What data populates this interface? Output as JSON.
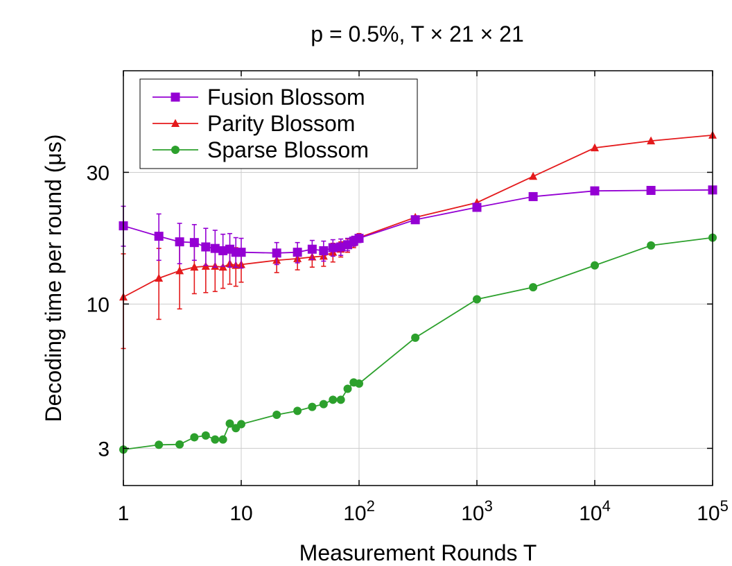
{
  "chart_data": {
    "type": "line",
    "title": "p = 0.5%, T × 21 × 21",
    "xlabel": "Measurement Rounds T",
    "ylabel": "Decoding time per round (μs)",
    "x_scale": "log",
    "y_scale": "log",
    "xlim": [
      1,
      100000
    ],
    "ylim": [
      2.2,
      70
    ],
    "grid": true,
    "legend_position": "top-left",
    "x_ticks": [
      {
        "value": 1,
        "label": "1",
        "sup": ""
      },
      {
        "value": 10,
        "label": "10",
        "sup": ""
      },
      {
        "value": 100,
        "label": "10",
        "sup": "2"
      },
      {
        "value": 1000,
        "label": "10",
        "sup": "3"
      },
      {
        "value": 10000,
        "label": "10",
        "sup": "4"
      },
      {
        "value": 100000,
        "label": "10",
        "sup": "5"
      }
    ],
    "y_ticks": [
      {
        "value": 3,
        "label": "3"
      },
      {
        "value": 10,
        "label": "10"
      },
      {
        "value": 30,
        "label": "30"
      }
    ],
    "series": [
      {
        "name": "Fusion Blossom",
        "color": "#9400d3",
        "marker": "square",
        "points": [
          {
            "x": 1,
            "y": 19.2,
            "lo": 16.2,
            "hi": 22.6
          },
          {
            "x": 2,
            "y": 17.6,
            "lo": 14.4,
            "hi": 21.2
          },
          {
            "x": 3,
            "y": 16.8,
            "lo": 14.0,
            "hi": 19.6
          },
          {
            "x": 4,
            "y": 16.7,
            "lo": 14.4,
            "hi": 19.4
          },
          {
            "x": 5,
            "y": 16.1,
            "lo": 13.8,
            "hi": 18.8
          },
          {
            "x": 6,
            "y": 15.9,
            "lo": 13.6,
            "hi": 18.5
          },
          {
            "x": 7,
            "y": 15.6,
            "lo": 13.7,
            "hi": 17.9
          },
          {
            "x": 8,
            "y": 15.8,
            "lo": 13.6,
            "hi": 18.0
          },
          {
            "x": 9,
            "y": 15.4,
            "lo": 13.6,
            "hi": 17.4
          },
          {
            "x": 10,
            "y": 15.4,
            "lo": 13.5,
            "hi": 17.3
          },
          {
            "x": 20,
            "y": 15.3,
            "lo": 13.9,
            "hi": 16.7
          },
          {
            "x": 30,
            "y": 15.4,
            "lo": 14.1,
            "hi": 16.7
          },
          {
            "x": 40,
            "y": 15.8,
            "lo": 14.5,
            "hi": 17.0
          },
          {
            "x": 50,
            "y": 15.6,
            "lo": 14.3,
            "hi": 16.9
          },
          {
            "x": 60,
            "y": 16.0,
            "lo": 14.9,
            "hi": 17.1
          },
          {
            "x": 70,
            "y": 16.1,
            "lo": 15.0,
            "hi": 17.2
          },
          {
            "x": 80,
            "y": 16.4,
            "lo": 15.6,
            "hi": 17.3
          },
          {
            "x": 90,
            "y": 16.9,
            "lo": 16.2,
            "hi": 17.6
          },
          {
            "x": 100,
            "y": 17.3,
            "lo": 16.7,
            "hi": 17.9
          },
          {
            "x": 300,
            "y": 20.2
          },
          {
            "x": 1000,
            "y": 22.4
          },
          {
            "x": 3000,
            "y": 24.5
          },
          {
            "x": 10000,
            "y": 25.7
          },
          {
            "x": 30000,
            "y": 25.8
          },
          {
            "x": 100000,
            "y": 25.9
          }
        ]
      },
      {
        "name": "Parity Blossom",
        "color": "#e41a1c",
        "marker": "triangle",
        "points": [
          {
            "x": 1,
            "y": 10.6,
            "lo": 6.9,
            "hi": 15.2
          },
          {
            "x": 2,
            "y": 12.4,
            "lo": 8.8,
            "hi": 15.9
          },
          {
            "x": 3,
            "y": 13.2,
            "lo": 9.6,
            "hi": 16.8
          },
          {
            "x": 4,
            "y": 13.6,
            "lo": 10.9,
            "hi": 16.3
          },
          {
            "x": 5,
            "y": 13.7,
            "lo": 11.0,
            "hi": 16.4
          },
          {
            "x": 6,
            "y": 13.7,
            "lo": 11.1,
            "hi": 16.3
          },
          {
            "x": 7,
            "y": 13.6,
            "lo": 11.4,
            "hi": 15.9
          },
          {
            "x": 8,
            "y": 14.0,
            "lo": 11.8,
            "hi": 16.2
          },
          {
            "x": 9,
            "y": 13.8,
            "lo": 11.6,
            "hi": 16.0
          },
          {
            "x": 10,
            "y": 13.9,
            "lo": 12.0,
            "hi": 15.8
          },
          {
            "x": 20,
            "y": 14.4,
            "lo": 13.0,
            "hi": 15.8
          },
          {
            "x": 30,
            "y": 14.6,
            "lo": 13.3,
            "hi": 15.9
          },
          {
            "x": 40,
            "y": 14.8,
            "lo": 13.6,
            "hi": 16.0
          },
          {
            "x": 50,
            "y": 14.9,
            "lo": 13.7,
            "hi": 16.1
          },
          {
            "x": 60,
            "y": 15.4,
            "lo": 14.2,
            "hi": 16.6
          },
          {
            "x": 70,
            "y": 15.8,
            "lo": 14.8,
            "hi": 16.8
          },
          {
            "x": 80,
            "y": 16.3,
            "lo": 15.4,
            "hi": 17.2
          },
          {
            "x": 90,
            "y": 16.7,
            "lo": 16.0,
            "hi": 17.4
          },
          {
            "x": 100,
            "y": 17.4,
            "lo": 16.8,
            "hi": 18.0
          },
          {
            "x": 300,
            "y": 20.6
          },
          {
            "x": 1000,
            "y": 23.3
          },
          {
            "x": 3000,
            "y": 29.0
          },
          {
            "x": 10000,
            "y": 36.8
          },
          {
            "x": 30000,
            "y": 39.0
          },
          {
            "x": 100000,
            "y": 40.9
          }
        ]
      },
      {
        "name": "Sparse Blossom",
        "color": "#2ca02c",
        "marker": "circle",
        "points": [
          {
            "x": 1,
            "y": 2.97
          },
          {
            "x": 2,
            "y": 3.09
          },
          {
            "x": 3,
            "y": 3.1
          },
          {
            "x": 4,
            "y": 3.29
          },
          {
            "x": 5,
            "y": 3.34
          },
          {
            "x": 6,
            "y": 3.23
          },
          {
            "x": 7,
            "y": 3.23
          },
          {
            "x": 8,
            "y": 3.69
          },
          {
            "x": 9,
            "y": 3.55
          },
          {
            "x": 10,
            "y": 3.67
          },
          {
            "x": 20,
            "y": 3.97
          },
          {
            "x": 30,
            "y": 4.1
          },
          {
            "x": 40,
            "y": 4.24
          },
          {
            "x": 50,
            "y": 4.34
          },
          {
            "x": 60,
            "y": 4.5
          },
          {
            "x": 70,
            "y": 4.5
          },
          {
            "x": 80,
            "y": 4.93
          },
          {
            "x": 90,
            "y": 5.2
          },
          {
            "x": 100,
            "y": 5.15
          },
          {
            "x": 300,
            "y": 7.55
          },
          {
            "x": 1000,
            "y": 10.4
          },
          {
            "x": 3000,
            "y": 11.5
          },
          {
            "x": 10000,
            "y": 13.8
          },
          {
            "x": 30000,
            "y": 16.3
          },
          {
            "x": 100000,
            "y": 17.4
          }
        ]
      }
    ]
  }
}
